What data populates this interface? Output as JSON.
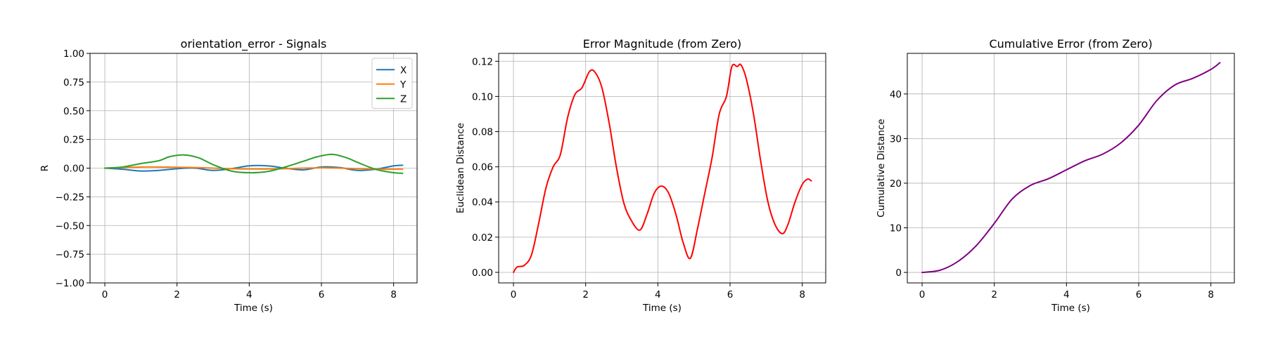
{
  "chart_data": [
    {
      "type": "line",
      "title": "orientation_error - Signals",
      "xlabel": "Time (s)",
      "ylabel": "R",
      "xlim": [
        -0.41,
        8.65
      ],
      "ylim": [
        -1.0,
        1.0
      ],
      "xticks": [
        0,
        2,
        4,
        6,
        8
      ],
      "yticks": [
        -1.0,
        -0.75,
        -0.5,
        -0.25,
        0.0,
        0.25,
        0.5,
        0.75,
        1.0
      ],
      "ytick_labels": [
        "−1.00",
        "−0.75",
        "−0.50",
        "−0.25",
        "0.00",
        "0.25",
        "0.50",
        "0.75",
        "1.00"
      ],
      "grid": true,
      "legend": "top-right",
      "series": [
        {
          "name": "X",
          "color": "#1f77b4",
          "x": [
            0,
            0.5,
            1.0,
            1.5,
            2.0,
            2.5,
            3.0,
            3.5,
            4.0,
            4.5,
            5.0,
            5.5,
            6.0,
            6.5,
            7.0,
            7.5,
            8.0,
            8.25
          ],
          "y": [
            0.0,
            -0.01,
            -0.025,
            -0.02,
            -0.005,
            0.0,
            -0.02,
            -0.005,
            0.02,
            0.02,
            0.0,
            -0.015,
            0.01,
            0.005,
            -0.02,
            -0.01,
            0.02,
            0.025
          ]
        },
        {
          "name": "Y",
          "color": "#ff7f0e",
          "x": [
            0,
            0.5,
            1.0,
            1.5,
            2.0,
            2.5,
            3.0,
            3.5,
            4.0,
            4.5,
            5.0,
            5.5,
            6.0,
            6.5,
            7.0,
            7.5,
            8.0,
            8.25
          ],
          "y": [
            0.0,
            0.005,
            0.01,
            0.01,
            0.008,
            0.005,
            0.0,
            -0.005,
            -0.008,
            -0.008,
            -0.005,
            0.0,
            0.002,
            0.0,
            -0.005,
            -0.008,
            -0.01,
            -0.01
          ]
        },
        {
          "name": "Z",
          "color": "#2ca02c",
          "x": [
            0,
            0.5,
            1.0,
            1.5,
            1.8,
            2.2,
            2.6,
            3.0,
            3.5,
            4.0,
            4.5,
            5.0,
            5.5,
            5.9,
            6.3,
            6.7,
            7.0,
            7.5,
            8.0,
            8.25
          ],
          "y": [
            0.0,
            0.01,
            0.04,
            0.065,
            0.1,
            0.115,
            0.09,
            0.03,
            -0.025,
            -0.04,
            -0.03,
            0.01,
            0.06,
            0.1,
            0.12,
            0.09,
            0.05,
            -0.01,
            -0.04,
            -0.045
          ]
        }
      ]
    },
    {
      "type": "line",
      "title": "Error Magnitude (from Zero)",
      "xlabel": "Time (s)",
      "ylabel": "Euclidean Distance",
      "xlim": [
        -0.41,
        8.65
      ],
      "ylim": [
        -0.006,
        0.1245
      ],
      "xticks": [
        0,
        2,
        4,
        6,
        8
      ],
      "yticks": [
        0.0,
        0.02,
        0.04,
        0.06,
        0.08,
        0.1,
        0.12
      ],
      "ytick_labels": [
        "0.00",
        "0.02",
        "0.04",
        "0.06",
        "0.08",
        "0.10",
        "0.12"
      ],
      "grid": true,
      "series": [
        {
          "color": "#ff0000",
          "x": [
            0,
            0.1,
            0.3,
            0.5,
            0.7,
            0.9,
            1.1,
            1.3,
            1.5,
            1.7,
            1.9,
            2.1,
            2.25,
            2.45,
            2.65,
            2.85,
            3.05,
            3.25,
            3.5,
            3.7,
            3.9,
            4.1,
            4.3,
            4.5,
            4.7,
            4.9,
            5.1,
            5.3,
            5.5,
            5.7,
            5.9,
            6.05,
            6.2,
            6.3,
            6.45,
            6.65,
            6.85,
            7.05,
            7.25,
            7.45,
            7.6,
            7.8,
            8.0,
            8.15,
            8.25
          ],
          "y": [
            0.0,
            0.003,
            0.004,
            0.01,
            0.028,
            0.048,
            0.06,
            0.067,
            0.088,
            0.101,
            0.105,
            0.114,
            0.114,
            0.105,
            0.085,
            0.06,
            0.04,
            0.03,
            0.024,
            0.033,
            0.045,
            0.049,
            0.045,
            0.033,
            0.017,
            0.008,
            0.025,
            0.045,
            0.065,
            0.09,
            0.1,
            0.117,
            0.117,
            0.118,
            0.11,
            0.09,
            0.063,
            0.04,
            0.027,
            0.022,
            0.027,
            0.04,
            0.05,
            0.053,
            0.052
          ]
        }
      ]
    },
    {
      "type": "line",
      "title": "Cumulative Error (from Zero)",
      "xlabel": "Time (s)",
      "ylabel": "Cumulative Distance",
      "xlim": [
        -0.41,
        8.65
      ],
      "ylim": [
        -2.35,
        49.1
      ],
      "xticks": [
        0,
        2,
        4,
        6,
        8
      ],
      "yticks": [
        0,
        10,
        20,
        30,
        40
      ],
      "ytick_labels": [
        "0",
        "10",
        "20",
        "30",
        "40"
      ],
      "grid": true,
      "series": [
        {
          "color": "#800080",
          "x": [
            0,
            0.5,
            1.0,
            1.5,
            2.0,
            2.5,
            3.0,
            3.5,
            4.0,
            4.5,
            5.0,
            5.5,
            6.0,
            6.5,
            7.0,
            7.5,
            8.0,
            8.25
          ],
          "y": [
            0.0,
            0.5,
            2.5,
            6.0,
            11.0,
            16.5,
            19.5,
            21.0,
            23.0,
            25.0,
            26.5,
            29.0,
            33.0,
            38.5,
            42.0,
            43.5,
            45.5,
            47.0
          ]
        }
      ]
    }
  ]
}
